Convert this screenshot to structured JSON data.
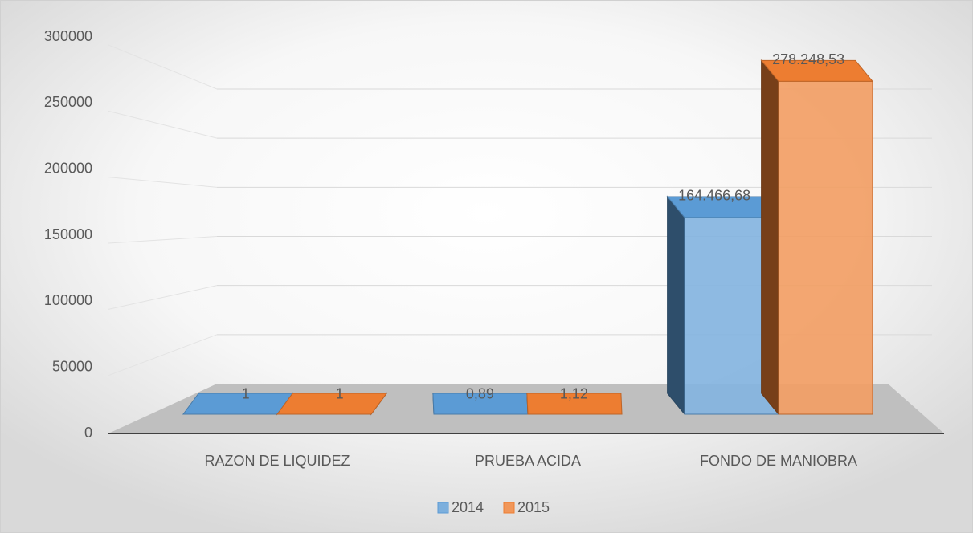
{
  "chart_data": {
    "type": "bar3d",
    "categories": [
      "RAZON DE LIQUIDEZ",
      "PRUEBA ACIDA",
      "FONDO DE MANIOBRA"
    ],
    "series": [
      {
        "name": "2014",
        "color": "#5b9bd5",
        "values": [
          1,
          0.89,
          164466.68
        ],
        "value_labels": [
          "1",
          "0,89",
          "164.466,68"
        ]
      },
      {
        "name": "2015",
        "color": "#ed7d31",
        "values": [
          1,
          1.12,
          278248.53
        ],
        "value_labels": [
          "1",
          "1,12",
          "278.248,53"
        ]
      }
    ],
    "ylim": [
      0,
      300000
    ],
    "yticks": [
      0,
      50000,
      100000,
      150000,
      200000,
      250000,
      300000
    ],
    "grid": true,
    "legend": "bottom"
  }
}
